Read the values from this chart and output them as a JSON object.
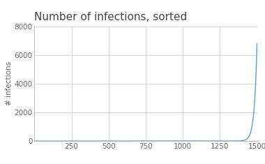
{
  "title": "Number of infections, sorted",
  "xlabel": "",
  "ylabel": "# infections",
  "xlim": [
    0,
    1500
  ],
  "ylim": [
    0,
    8000
  ],
  "xticks": [
    250,
    500,
    750,
    1000,
    1250,
    1500
  ],
  "yticks": [
    0,
    2000,
    4000,
    6000,
    8000
  ],
  "n_points": 1500,
  "line_color": "#5b9bd5",
  "background_color": "#ffffff",
  "grid_color": "#d0d0d0",
  "title_fontsize": 11,
  "axis_label_fontsize": 7.5,
  "tick_fontsize": 7.5,
  "curve_max": 6800,
  "curve_knee": 1420,
  "curve_scale": 18.0
}
